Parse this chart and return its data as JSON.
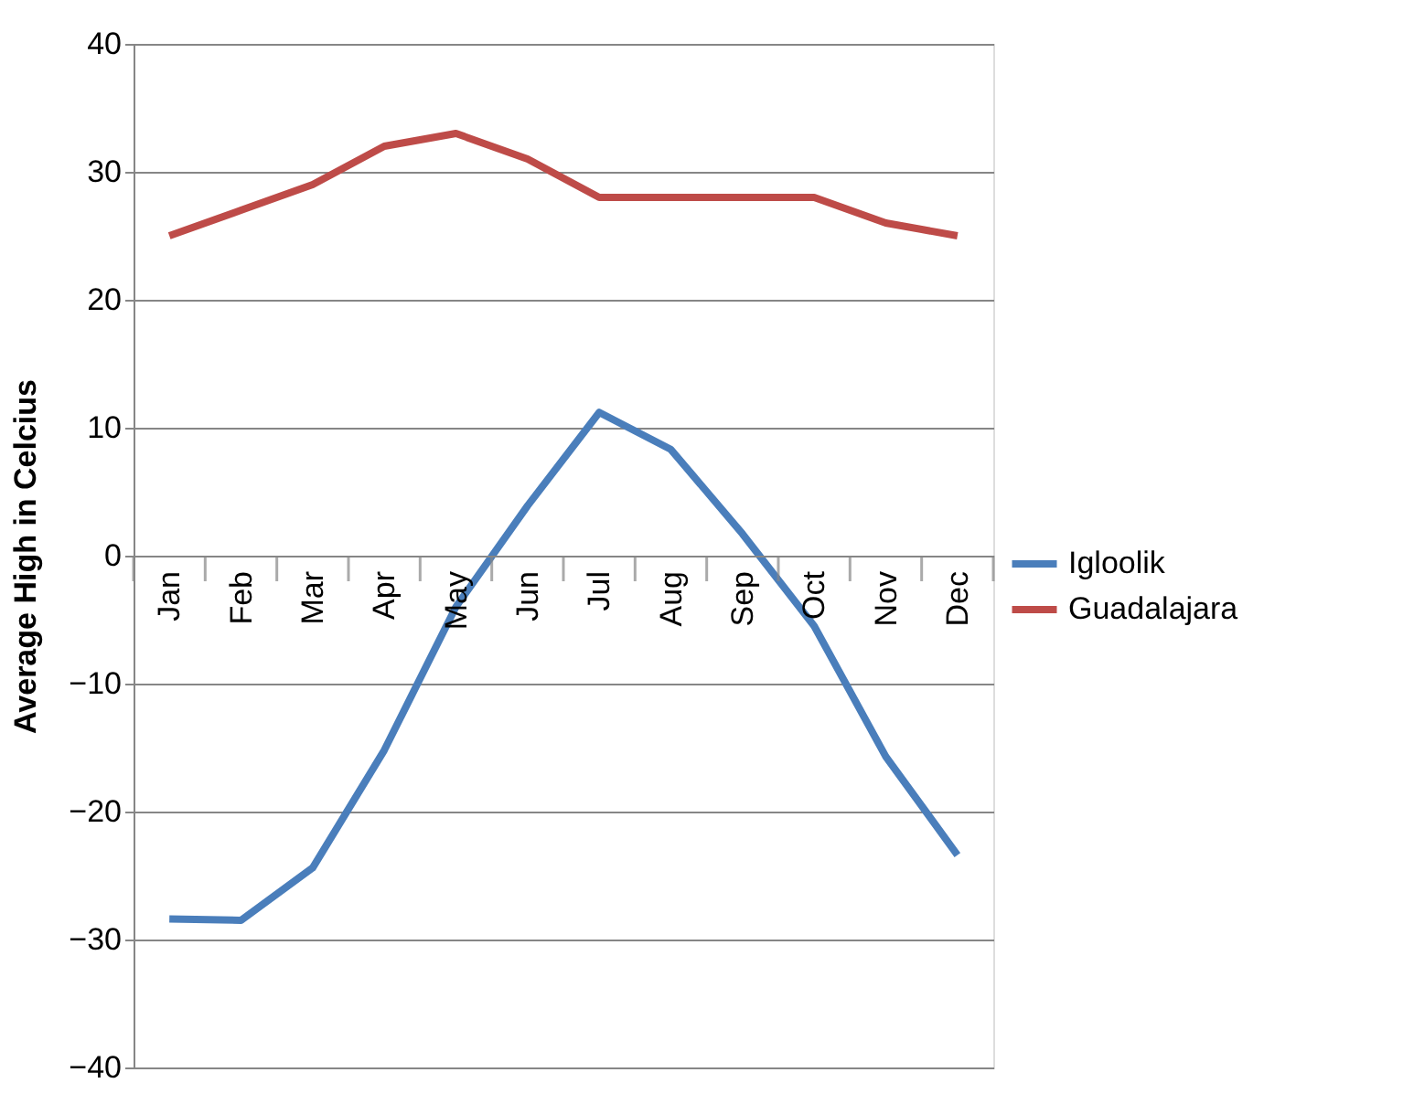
{
  "chart_data": {
    "type": "line",
    "ylabel": "Average High in Celcius",
    "categories": [
      "Jan",
      "Feb",
      "Mar",
      "Apr",
      "May",
      "Jun",
      "Jul",
      "Aug",
      "Sep",
      "Oct",
      "Nov",
      "Dec"
    ],
    "series": [
      {
        "name": "Igloolik",
        "color": "#4a7ebb",
        "values": [
          -28.4,
          -28.5,
          -24.4,
          -15.2,
          -4.0,
          3.9,
          11.2,
          8.3,
          1.7,
          -5.5,
          -15.7,
          -23.4
        ]
      },
      {
        "name": "Guadalajara",
        "color": "#be4b48",
        "values": [
          25,
          27,
          29,
          32,
          33,
          31,
          28,
          28,
          28,
          28,
          26,
          25
        ]
      }
    ],
    "ylim": [
      -40,
      40
    ],
    "yticks": [
      -40,
      -30,
      -20,
      -10,
      0,
      10,
      20,
      30,
      40
    ],
    "grid": "y",
    "legend": "right",
    "marker": "none",
    "line_style": "solid"
  }
}
